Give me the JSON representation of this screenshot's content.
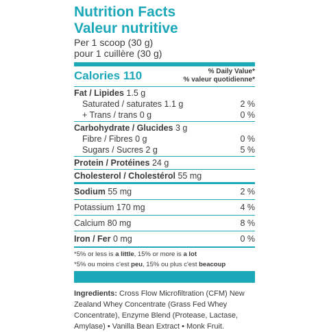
{
  "header": {
    "title": "Nutrition Facts",
    "title_fr": "Valeur nutritive",
    "serving": "Per 1 scoop (30 g)",
    "serving_fr": "pour 1 cuillère (30 g)"
  },
  "calories": {
    "label": "Calories",
    "value": 110,
    "dv": "% Daily Value*",
    "dv_fr": "% valeur quotidienne*"
  },
  "groups": [
    {
      "rows": [
        {
          "name": "Fat / Lipides",
          "amount": "1.5 g",
          "bold": true
        },
        {
          "name": "Saturated / saturates",
          "amount": "1.1 g",
          "dv": "2 %",
          "indent": true
        },
        {
          "name": "+ Trans / trans",
          "amount": "0 g",
          "dv": "0 %",
          "indent": true
        }
      ]
    },
    {
      "rows": [
        {
          "name": "Carbohydrate / Glucides",
          "amount": "3 g",
          "bold": true
        },
        {
          "name": "Fibre / Fibres",
          "amount": "0 g",
          "dv": "0 %",
          "indent": true
        },
        {
          "name": "Sugars / Sucres",
          "amount": "2 g",
          "dv": "5 %",
          "indent": true
        }
      ]
    },
    {
      "rows": [
        {
          "name": "Protein / Protéines",
          "amount": "24 g",
          "bold": true
        }
      ]
    },
    {
      "rows": [
        {
          "name": "Cholesterol / Cholestérol",
          "amount": "55 mg",
          "bold": true
        }
      ]
    },
    {
      "rows": [
        {
          "name": "Sodium",
          "amount": "55 mg",
          "dv": "2 %",
          "bold": true
        }
      ]
    },
    {
      "rows": [
        {
          "name": "Potassium",
          "amount": "170 mg",
          "dv": "4 %"
        }
      ]
    },
    {
      "rows": [
        {
          "name": "Calcium",
          "amount": "80 mg",
          "dv": "8 %"
        }
      ]
    },
    {
      "rows": [
        {
          "name": "Iron / Fer",
          "amount": "0 mg",
          "dv": "0 %",
          "bold": true
        }
      ]
    }
  ],
  "footnotes": [
    [
      {
        "text": "*5% or less is "
      },
      {
        "text": "a little",
        "bold": true
      },
      {
        "text": ", 15% or more is "
      },
      {
        "text": "a lot",
        "bold": true
      }
    ],
    [
      {
        "text": "*5% ou moins c'est "
      },
      {
        "text": "peu",
        "bold": true
      },
      {
        "text": ", 15% ou plus c'est "
      },
      {
        "text": "beacoup",
        "bold": true
      }
    ]
  ],
  "ingredients": {
    "label": "Ingredients:",
    "text": " Cross Flow Microfiltration (CFM) New Zealand Whey Concentrate (Grass Fed Whey Concentrate), Enzyme Blend (Protease, Lactase, Amylase) • Vanilla Bean Extract • Monk Fruit."
  }
}
